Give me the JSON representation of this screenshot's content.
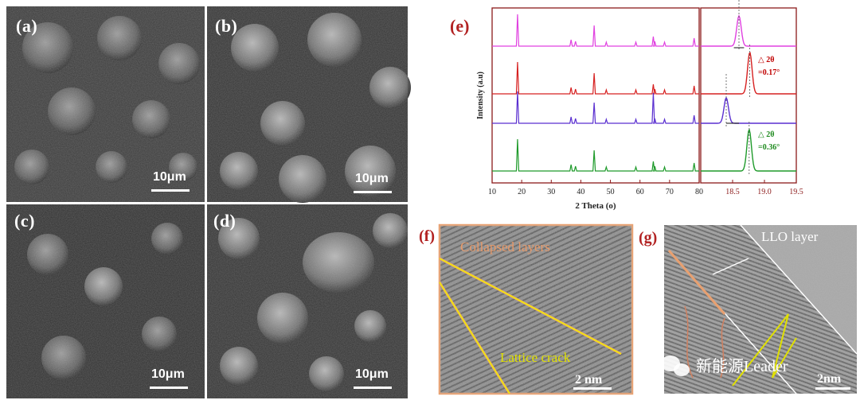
{
  "sem": {
    "a": {
      "label": "(a)",
      "scale": "10μm"
    },
    "b": {
      "label": "(b)",
      "scale": "10μm"
    },
    "c": {
      "label": "(c)",
      "scale": "10μm"
    },
    "d": {
      "label": "(d)",
      "scale": "10μm"
    }
  },
  "xrd": {
    "label": "(e)",
    "chart_data": {
      "type": "line",
      "title": "",
      "xlabel": "2 Theta (o)",
      "ylabel": "Intensity (a.u)",
      "main_xlim": [
        10,
        80
      ],
      "main_xticks": [
        "10",
        "20",
        "30",
        "40",
        "50",
        "60",
        "70",
        "80"
      ],
      "zoom_xlim": [
        18.0,
        19.5
      ],
      "zoom_xticks": [
        "18.5",
        "19.0",
        "19.5"
      ],
      "peak_positions": [
        18.6,
        36.7,
        38.2,
        44.5,
        48.6,
        58.6,
        64.5,
        65.0,
        68.3,
        78.3
      ],
      "series": [
        {
          "color": "#e040e0",
          "zoom_peak": 18.6
        },
        {
          "color": "#d62020",
          "zoom_peak": 18.77
        },
        {
          "color": "#5a2fd0",
          "zoom_peak": 18.4
        },
        {
          "color": "#1e9a2a",
          "zoom_peak": 18.76
        }
      ],
      "annotations": [
        {
          "line1": "△ 2θ",
          "line2": "=0.17°",
          "color": "#c00000"
        },
        {
          "line1": "△ 2θ",
          "line2": "=0.36°",
          "color": "#1e8a1e"
        }
      ]
    }
  },
  "tem_f": {
    "label": "(f)",
    "collapsed": "Collapsed layers",
    "crack": "Lattice crack",
    "scale": "2 nm"
  },
  "tem_g": {
    "label": "(g)",
    "llo": "LLO layer",
    "scale": "2nm",
    "watermark": "新能源Leader"
  }
}
